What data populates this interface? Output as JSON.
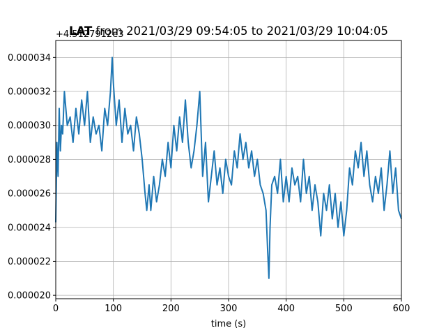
{
  "chart_data": {
    "type": "line",
    "title_bold": "LAT",
    "title_rest": " from 2021/03/29 09:54:05 to 2021/03/29 10:04:05",
    "offset_text": "+4.5127912e3",
    "xlabel": "time (s)",
    "ylabel": "",
    "xlim": [
      0,
      600
    ],
    "ylim": [
      1.98e-05,
      3.5e-05
    ],
    "xticks": [
      0,
      100,
      200,
      300,
      400,
      500,
      600
    ],
    "xtick_labels": [
      "0",
      "100",
      "200",
      "300",
      "400",
      "500",
      "600"
    ],
    "yticks": [
      2e-05,
      2.2e-05,
      2.4e-05,
      2.6e-05,
      2.8e-05,
      3e-05,
      3.2e-05,
      3.4e-05
    ],
    "ytick_labels": [
      "0.000020",
      "0.000022",
      "0.000024",
      "0.000026",
      "0.000028",
      "0.000030",
      "0.000032",
      "0.000034"
    ],
    "grid": true,
    "line_color": "#1f77b4",
    "series": [
      {
        "x": [
          0,
          2,
          4,
          6,
          8,
          10,
          12,
          15,
          20,
          25,
          30,
          35,
          40,
          45,
          50,
          55,
          60,
          65,
          70,
          75,
          80,
          85,
          90,
          95,
          98,
          100,
          105,
          110,
          115,
          120,
          125,
          130,
          135,
          140,
          145,
          150,
          155,
          158,
          162,
          165,
          170,
          175,
          180,
          185,
          190,
          195,
          200,
          205,
          210,
          215,
          220,
          225,
          230,
          235,
          240,
          245,
          250,
          255,
          260,
          265,
          270,
          275,
          280,
          285,
          290,
          295,
          300,
          305,
          310,
          315,
          320,
          325,
          330,
          335,
          340,
          345,
          350,
          355,
          360,
          365,
          368,
          370,
          372,
          375,
          380,
          385,
          390,
          395,
          400,
          405,
          410,
          415,
          420,
          425,
          430,
          435,
          440,
          445,
          450,
          455,
          460,
          465,
          470,
          475,
          480,
          485,
          490,
          495,
          500,
          505,
          510,
          515,
          520,
          525,
          530,
          535,
          540,
          545,
          550,
          555,
          560,
          565,
          570,
          575,
          580,
          585,
          590,
          595,
          600
        ],
        "y": [
          2.43e-05,
          2.9e-05,
          2.7e-05,
          3.1e-05,
          2.85e-05,
          3e-05,
          2.95e-05,
          3.2e-05,
          3e-05,
          3.05e-05,
          2.9e-05,
          3.1e-05,
          2.95e-05,
          3.15e-05,
          3e-05,
          3.2e-05,
          2.9e-05,
          3.05e-05,
          2.95e-05,
          3e-05,
          2.85e-05,
          3.1e-05,
          3e-05,
          3.2e-05,
          3.4e-05,
          3.25e-05,
          3e-05,
          3.15e-05,
          2.9e-05,
          3.1e-05,
          2.95e-05,
          3e-05,
          2.85e-05,
          3.05e-05,
          2.95e-05,
          2.8e-05,
          2.6e-05,
          2.5e-05,
          2.65e-05,
          2.5e-05,
          2.7e-05,
          2.55e-05,
          2.65e-05,
          2.8e-05,
          2.7e-05,
          2.9e-05,
          2.75e-05,
          3e-05,
          2.85e-05,
          3.05e-05,
          2.9e-05,
          3.15e-05,
          2.9e-05,
          2.75e-05,
          2.85e-05,
          3e-05,
          3.2e-05,
          2.7e-05,
          2.9e-05,
          2.55e-05,
          2.7e-05,
          2.85e-05,
          2.65e-05,
          2.75e-05,
          2.6e-05,
          2.8e-05,
          2.7e-05,
          2.65e-05,
          2.85e-05,
          2.75e-05,
          2.95e-05,
          2.8e-05,
          2.9e-05,
          2.75e-05,
          2.85e-05,
          2.7e-05,
          2.8e-05,
          2.65e-05,
          2.6e-05,
          2.5e-05,
          2.25e-05,
          2.1e-05,
          2.4e-05,
          2.65e-05,
          2.7e-05,
          2.6e-05,
          2.8e-05,
          2.55e-05,
          2.7e-05,
          2.55e-05,
          2.75e-05,
          2.65e-05,
          2.7e-05,
          2.55e-05,
          2.8e-05,
          2.6e-05,
          2.7e-05,
          2.5e-05,
          2.65e-05,
          2.55e-05,
          2.35e-05,
          2.6e-05,
          2.5e-05,
          2.65e-05,
          2.45e-05,
          2.6e-05,
          2.4e-05,
          2.55e-05,
          2.35e-05,
          2.5e-05,
          2.75e-05,
          2.65e-05,
          2.85e-05,
          2.75e-05,
          2.9e-05,
          2.7e-05,
          2.85e-05,
          2.65e-05,
          2.55e-05,
          2.7e-05,
          2.6e-05,
          2.75e-05,
          2.5e-05,
          2.65e-05,
          2.85e-05,
          2.6e-05,
          2.75e-05,
          2.5e-05,
          2.45e-05
        ]
      }
    ]
  }
}
